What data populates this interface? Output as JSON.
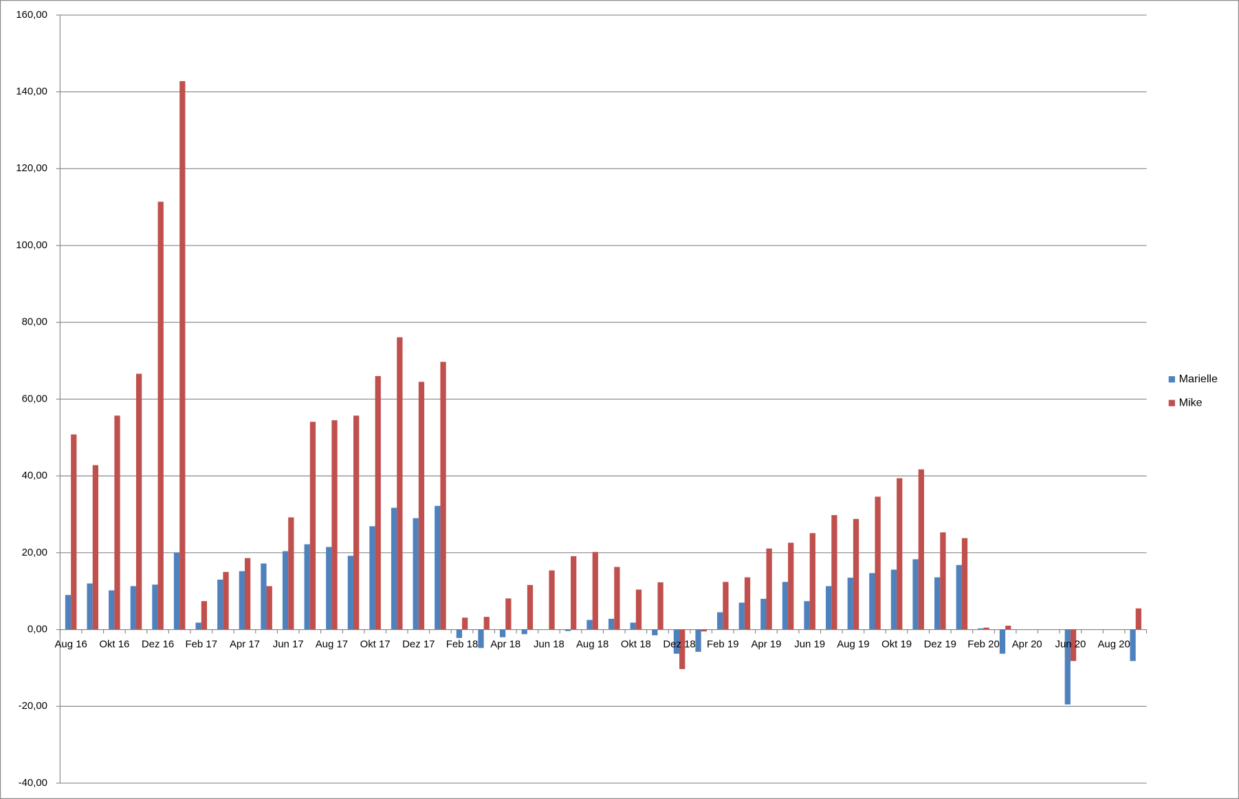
{
  "chart_data": {
    "type": "bar",
    "categories": [
      "Aug 16",
      null,
      "Okt 16",
      null,
      "Dez 16",
      null,
      "Feb 17",
      null,
      "Apr 17",
      null,
      "Jun 17",
      null,
      "Aug 17",
      null,
      "Okt 17",
      null,
      "Dez 17",
      null,
      "Feb 18",
      null,
      "Apr 18",
      null,
      "Jun 18",
      null,
      "Aug 18",
      null,
      "Okt 18",
      null,
      "Dez 18",
      null,
      "Feb 19",
      null,
      "Apr 19",
      null,
      "Jun 19",
      null,
      "Aug 19",
      null,
      "Okt 19",
      null,
      "Dez 19",
      null,
      "Feb 20",
      null,
      "Apr 20",
      null,
      "Jun 20",
      null,
      "Aug 20",
      null
    ],
    "series": [
      {
        "name": "Marielle",
        "color": "#4f81bd",
        "values": [
          9,
          12,
          10.2,
          11.3,
          11.7,
          20,
          1.8,
          13,
          15.2,
          17.2,
          20.4,
          22.2,
          21.5,
          19.2,
          26.9,
          31.7,
          29,
          32.2,
          -2.2,
          -4.8,
          -2,
          -1.2,
          0,
          -0.4,
          2.5,
          2.8,
          1.8,
          -1.5,
          -6.3,
          -5.8,
          4.5,
          7,
          8,
          12.4,
          7.4,
          11.3,
          13.5,
          14.7,
          15.6,
          18.3,
          13.6,
          16.8,
          0.3,
          -6.3,
          0,
          0,
          -19.5,
          0,
          0,
          -8.2
        ]
      },
      {
        "name": "Mike",
        "color": "#c0504d",
        "values": [
          50.8,
          42.8,
          55.7,
          66.6,
          111.4,
          142.8,
          7.4,
          15,
          18.6,
          11.3,
          29.2,
          54.1,
          54.5,
          55.7,
          66,
          76.1,
          64.5,
          69.7,
          3.1,
          3.3,
          8.1,
          11.6,
          15.4,
          19.1,
          20.2,
          16.3,
          10.4,
          12.3,
          -10.3,
          -0.5,
          12.4,
          13.6,
          21.1,
          22.6,
          25.1,
          29.8,
          28.8,
          34.6,
          39.4,
          41.7,
          25.3,
          23.8,
          0.5,
          1,
          0,
          0,
          -8.2,
          0,
          0,
          5.5
        ]
      }
    ],
    "ylim": [
      -40,
      160
    ],
    "yticks": [
      {
        "value": -40,
        "label": "-40,00"
      },
      {
        "value": -20,
        "label": "-20,00"
      },
      {
        "value": 0,
        "label": "0,00"
      },
      {
        "value": 20,
        "label": "20,00"
      },
      {
        "value": 40,
        "label": "40,00"
      },
      {
        "value": 60,
        "label": "60,00"
      },
      {
        "value": 80,
        "label": "80,00"
      },
      {
        "value": 100,
        "label": "100,00"
      },
      {
        "value": 120,
        "label": "120,00"
      },
      {
        "value": 140,
        "label": "140,00"
      },
      {
        "value": 160,
        "label": "160,00"
      }
    ],
    "grid": true,
    "legend": "right"
  }
}
